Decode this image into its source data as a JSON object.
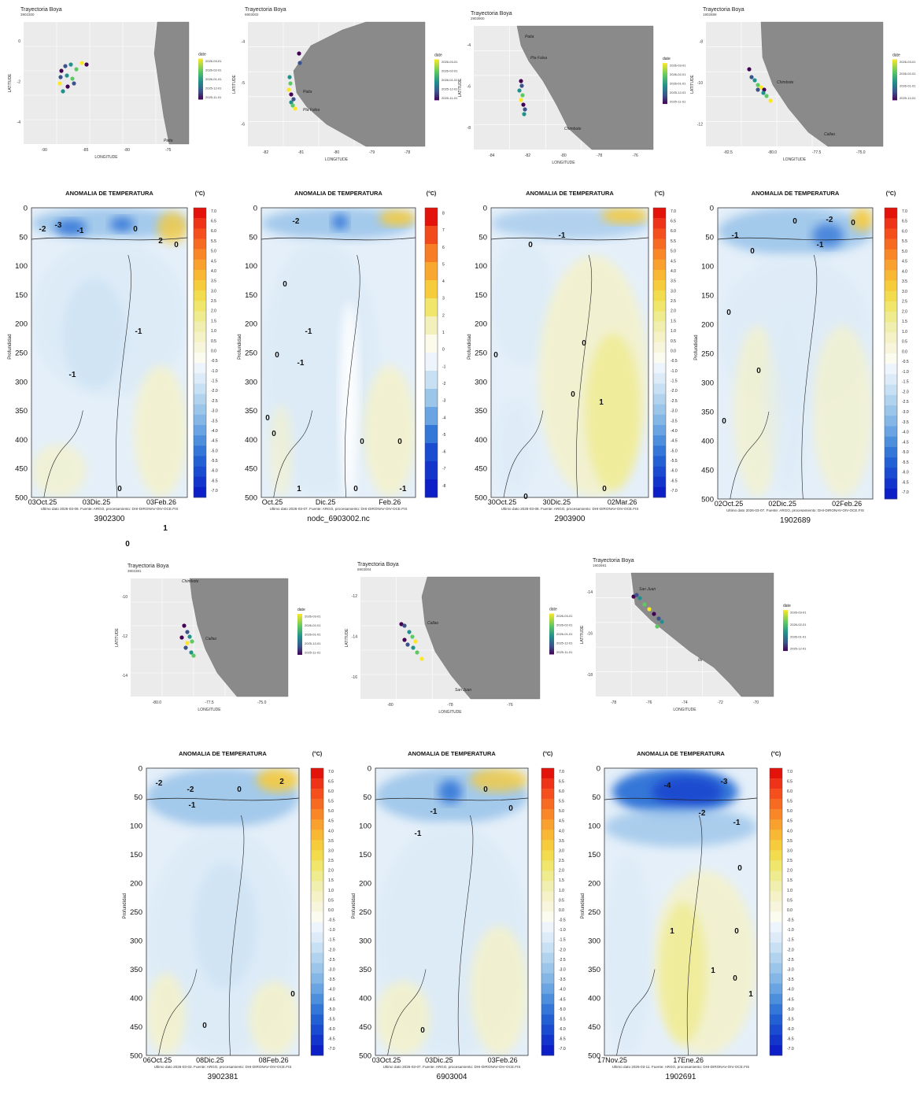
{
  "maps": [
    {
      "title": "Trayectoria Boya",
      "subtitle": "3902300",
      "xlabel": "LONGITUDE",
      "ylabel": "LATITUDE",
      "legend_title": "date",
      "legend_ticks": [
        "2026-03-01",
        "2026-02-01",
        "2026-01-01",
        "2025-12-01",
        "2025-11-01"
      ],
      "places": [
        "Paita"
      ],
      "lon_ticks": [
        "-90",
        "-85",
        "-80",
        "-75"
      ],
      "lat_ticks": [
        "0",
        "-2",
        "-4"
      ]
    },
    {
      "title": "Trayectoria Boya",
      "subtitle": "6903002",
      "xlabel": "LONGITUDE",
      "ylabel": "LATITUDE",
      "legend_title": "date",
      "legend_ticks": [
        "2026-03-01",
        "2026-02-01",
        "2026-01-01",
        "2025-12-01",
        "2025-11-01"
      ],
      "places": [
        "Paita",
        "Pta Falsa"
      ],
      "lon_ticks": [
        "-82",
        "-81",
        "-80",
        "-79",
        "-78"
      ],
      "lat_ticks": [
        "-4",
        "-5",
        "-6"
      ]
    },
    {
      "title": "Trayectoria Boya",
      "subtitle": "2903900",
      "xlabel": "LONGITUDE",
      "ylabel": "LATITUDE",
      "legend_title": "date",
      "legend_ticks": [
        "2026-03-01",
        "2026-02-01",
        "2026-01-01",
        "2025-12-01",
        "2025-11-01"
      ],
      "places": [
        "Paita",
        "Pta Falsa",
        "Chimbote"
      ],
      "lon_ticks": [
        "-84",
        "-82",
        "-80",
        "-78",
        "-76"
      ],
      "lat_ticks": [
        "-4",
        "-6",
        "-8"
      ]
    },
    {
      "title": "Trayectoria Boya",
      "subtitle": "1902689",
      "xlabel": "LONGITUDE",
      "ylabel": "LATITUDE",
      "legend_title": "date",
      "legend_ticks": [
        "2026-03-01",
        "2026-02-01",
        "2026-01-01",
        "2025-12-01"
      ],
      "places": [
        "Chimbote",
        "Callao"
      ],
      "lon_ticks": [
        "-82.5",
        "-80.0",
        "-77.5",
        "-75.0"
      ],
      "lat_ticks": [
        "-8",
        "-10",
        "-12"
      ]
    },
    {
      "title": "Trayectoria Boya",
      "subtitle": "3902381",
      "xlabel": "LONGITUDE",
      "ylabel": "LATITUDE",
      "legend_title": "date",
      "legend_ticks": [
        "2026-03-01",
        "2026-02-01",
        "2026-01-01",
        "2025-12-01",
        "2025-11-01"
      ],
      "places": [
        "Chimbote",
        "Callao"
      ],
      "lon_ticks": [
        "-80.0",
        "-77.5",
        "-75.0"
      ],
      "lat_ticks": [
        "-10",
        "-12",
        "-14"
      ]
    },
    {
      "title": "Trayectoria Boya",
      "subtitle": "6903004",
      "xlabel": "LONGITUDE",
      "ylabel": "LATITUDE",
      "legend_title": "date",
      "legend_ticks": [
        "2026-03-01",
        "2026-02-01",
        "2026-01-01",
        "2025-12-01",
        "2025-11-01"
      ],
      "places": [
        "Callao",
        "San Juan"
      ],
      "lon_ticks": [
        "-80",
        "-78",
        "-76"
      ],
      "lat_ticks": [
        "-12",
        "-14",
        "-16"
      ]
    },
    {
      "title": "Trayectoria Boya",
      "subtitle": "1902691",
      "xlabel": "LONGITUDE",
      "ylabel": "LATITUDE",
      "legend_title": "date",
      "legend_ticks": [
        "2026-03-01",
        "2026-02-01",
        "2026-01-01",
        "2025-12-01"
      ],
      "places": [
        "San Juan",
        "Ilo"
      ],
      "lon_ticks": [
        "-78",
        "-76",
        "-74",
        "-72",
        "-70"
      ],
      "lat_ticks": [
        "-14",
        "-16",
        "-18"
      ]
    }
  ],
  "sections": [
    {
      "title": "ANOMALIA DE TEMPERATURA",
      "unit": "(°C)",
      "ylabel": "Profundidad",
      "x_ticks": [
        "03Oct.25",
        "03Dic.25",
        "03Feb.26"
      ],
      "footer": "Ultimo dato 2026-03-09. Fuente: ARGO, procesamiento: DHI-DIRONAV-OIV-OCE.FIS",
      "caption": "3902300",
      "contour_labels": [
        "-2",
        "-3",
        "-1",
        "0",
        "2",
        "0",
        "-1",
        "-1",
        "0",
        "1",
        "0"
      ]
    },
    {
      "title": "ANOMALIA DE TEMPERATURA",
      "unit": "(°C)",
      "ylabel": "Profundidad",
      "x_ticks": [
        "Oct.25",
        "Dic.25",
        "Feb.26"
      ],
      "footer": "Ultimo dato 2026-03-07. Fuente: ARGO, procesamiento: DHI-DIRONAV-OIV-OCE.FIS",
      "caption": "nodc_6903002.nc",
      "contour_labels": [
        "-2",
        "0",
        "-1",
        "0",
        "-1",
        "0",
        "0",
        "1",
        "0",
        "0",
        "-1",
        "0"
      ]
    },
    {
      "title": "ANOMALIA DE TEMPERATURA",
      "unit": "(°C)",
      "ylabel": "Profundidad",
      "x_ticks": [
        "30Oct.25",
        "30Dic.25",
        "02Mar.26"
      ],
      "footer": "Ultimo dato 2026-03-08. Fuente: ARGO, procesamiento: DHI-DIRONAV-OIV-OCE.FIS",
      "caption": "2903900",
      "contour_labels": [
        "0",
        "-1",
        "0",
        "0",
        "0",
        "1",
        "0",
        "0"
      ]
    },
    {
      "title": "ANOMALIA DE TEMPERATURA",
      "unit": "(°C)",
      "ylabel": "Profundidad",
      "x_ticks": [
        "02Oct.25",
        "02Dic.25",
        "02Feb.26"
      ],
      "footer": "Ultimo dato 2026-03-07. Fuente: ARGO, procesamiento: DHI-DIRONAV-OIV-OCE.FIS",
      "caption": "1902689",
      "contour_labels": [
        "0",
        "-2",
        "0",
        "-1",
        "-1",
        "0",
        "0",
        "0",
        "0"
      ]
    },
    {
      "title": "ANOMALIA DE TEMPERATURA",
      "unit": "(°C)",
      "ylabel": "Profundidad",
      "x_ticks": [
        "06Oct.25",
        "08Dic.25",
        "08Feb.26"
      ],
      "footer": "Ultimo dato 2026-03-03. Fuente: ARGO, procesamiento: DHI-DIRONAV-OIV-OCE.FIS",
      "caption": "3902381",
      "contour_labels": [
        "-2",
        "-2",
        "-1",
        "0",
        "2",
        "0",
        "0"
      ]
    },
    {
      "title": "ANOMALIA DE TEMPERATURA",
      "unit": "(°C)",
      "ylabel": "Profundidad",
      "x_ticks": [
        "03Oct.25",
        "03Dic.25",
        "03Feb.26"
      ],
      "footer": "Ultimo dato 2026-03-07. Fuente: ARGO, procesamiento: DHI-DIRONAV-OIV-OCE.FIS",
      "caption": "6903004",
      "contour_labels": [
        "-1",
        "0",
        "-1",
        "0",
        "0"
      ]
    },
    {
      "title": "ANOMALIA DE TEMPERATURA",
      "unit": "(°C)",
      "ylabel": "Profundidad",
      "x_ticks": [
        "17Nov.25",
        "17Ene.26"
      ],
      "footer": "Ultimo dato 2026-03-11. Fuente: ARGO, procesamiento: DHI-DIRONAV-OIV-OCE.FIS",
      "caption": "1902691",
      "contour_labels": [
        "-4",
        "-3",
        "-2",
        "-1",
        "0",
        "1",
        "1",
        "0",
        "1",
        "0"
      ]
    }
  ],
  "chart_data": {
    "type": "heatmap",
    "y_axis": {
      "label": "Profundidad",
      "ticks": [
        0,
        50,
        100,
        150,
        200,
        250,
        300,
        350,
        400,
        450,
        500
      ],
      "range": [
        0,
        500
      ],
      "inverted": true
    },
    "colorbar_ticks": [
      "7.0",
      "6.5",
      "6.0",
      "5.5",
      "5.0",
      "4.5",
      "4.0",
      "3.5",
      "3.0",
      "2.5",
      "2.0",
      "1.5",
      "1.0",
      "0.5",
      "0.0",
      "-0.5",
      "-1.0",
      "-1.5",
      "-2.0",
      "-2.5",
      "-3.0",
      "-3.5",
      "-4.0",
      "-4.5",
      "-5.0",
      "-5.5",
      "-6.0",
      "-6.5",
      "-7.0"
    ],
    "colorbar_ticks_alt": [
      "8",
      "7",
      "6",
      "5",
      "4",
      "3",
      "2",
      "1",
      "0",
      "-1",
      "-2",
      "-3",
      "-4",
      "-5",
      "-6",
      "-7",
      "-8"
    ],
    "colorbar_colors": [
      "#e3120b",
      "#ee3318",
      "#f44f1c",
      "#f76a22",
      "#f98728",
      "#f9a12e",
      "#f8b833",
      "#f6cb3c",
      "#f2dc4e",
      "#efe66b",
      "#efeb8f",
      "#f1efaf",
      "#f5f2c8",
      "#f8f5dd",
      "#fcfbf0",
      "#eef4fb",
      "#dcebf7",
      "#c8e0f3",
      "#b2d3ee",
      "#9cc5ea",
      "#84b6e6",
      "#6aa4e2",
      "#4d8fdd",
      "#3577d8",
      "#2260d3",
      "#1a4bd0",
      "#1435cc",
      "#0d1fc7"
    ],
    "colorbar_colors_alt": [
      "#e3120b",
      "#f14a1c",
      "#f77d26",
      "#f9a82f",
      "#f6cb3c",
      "#efe66b",
      "#f3f0bb",
      "#fbfaeb",
      "#eef4fb",
      "#c8e0f3",
      "#9cc5ea",
      "#6aa4e2",
      "#3577d8",
      "#1a4bd0",
      "#1435cc",
      "#0d1fc7"
    ]
  }
}
